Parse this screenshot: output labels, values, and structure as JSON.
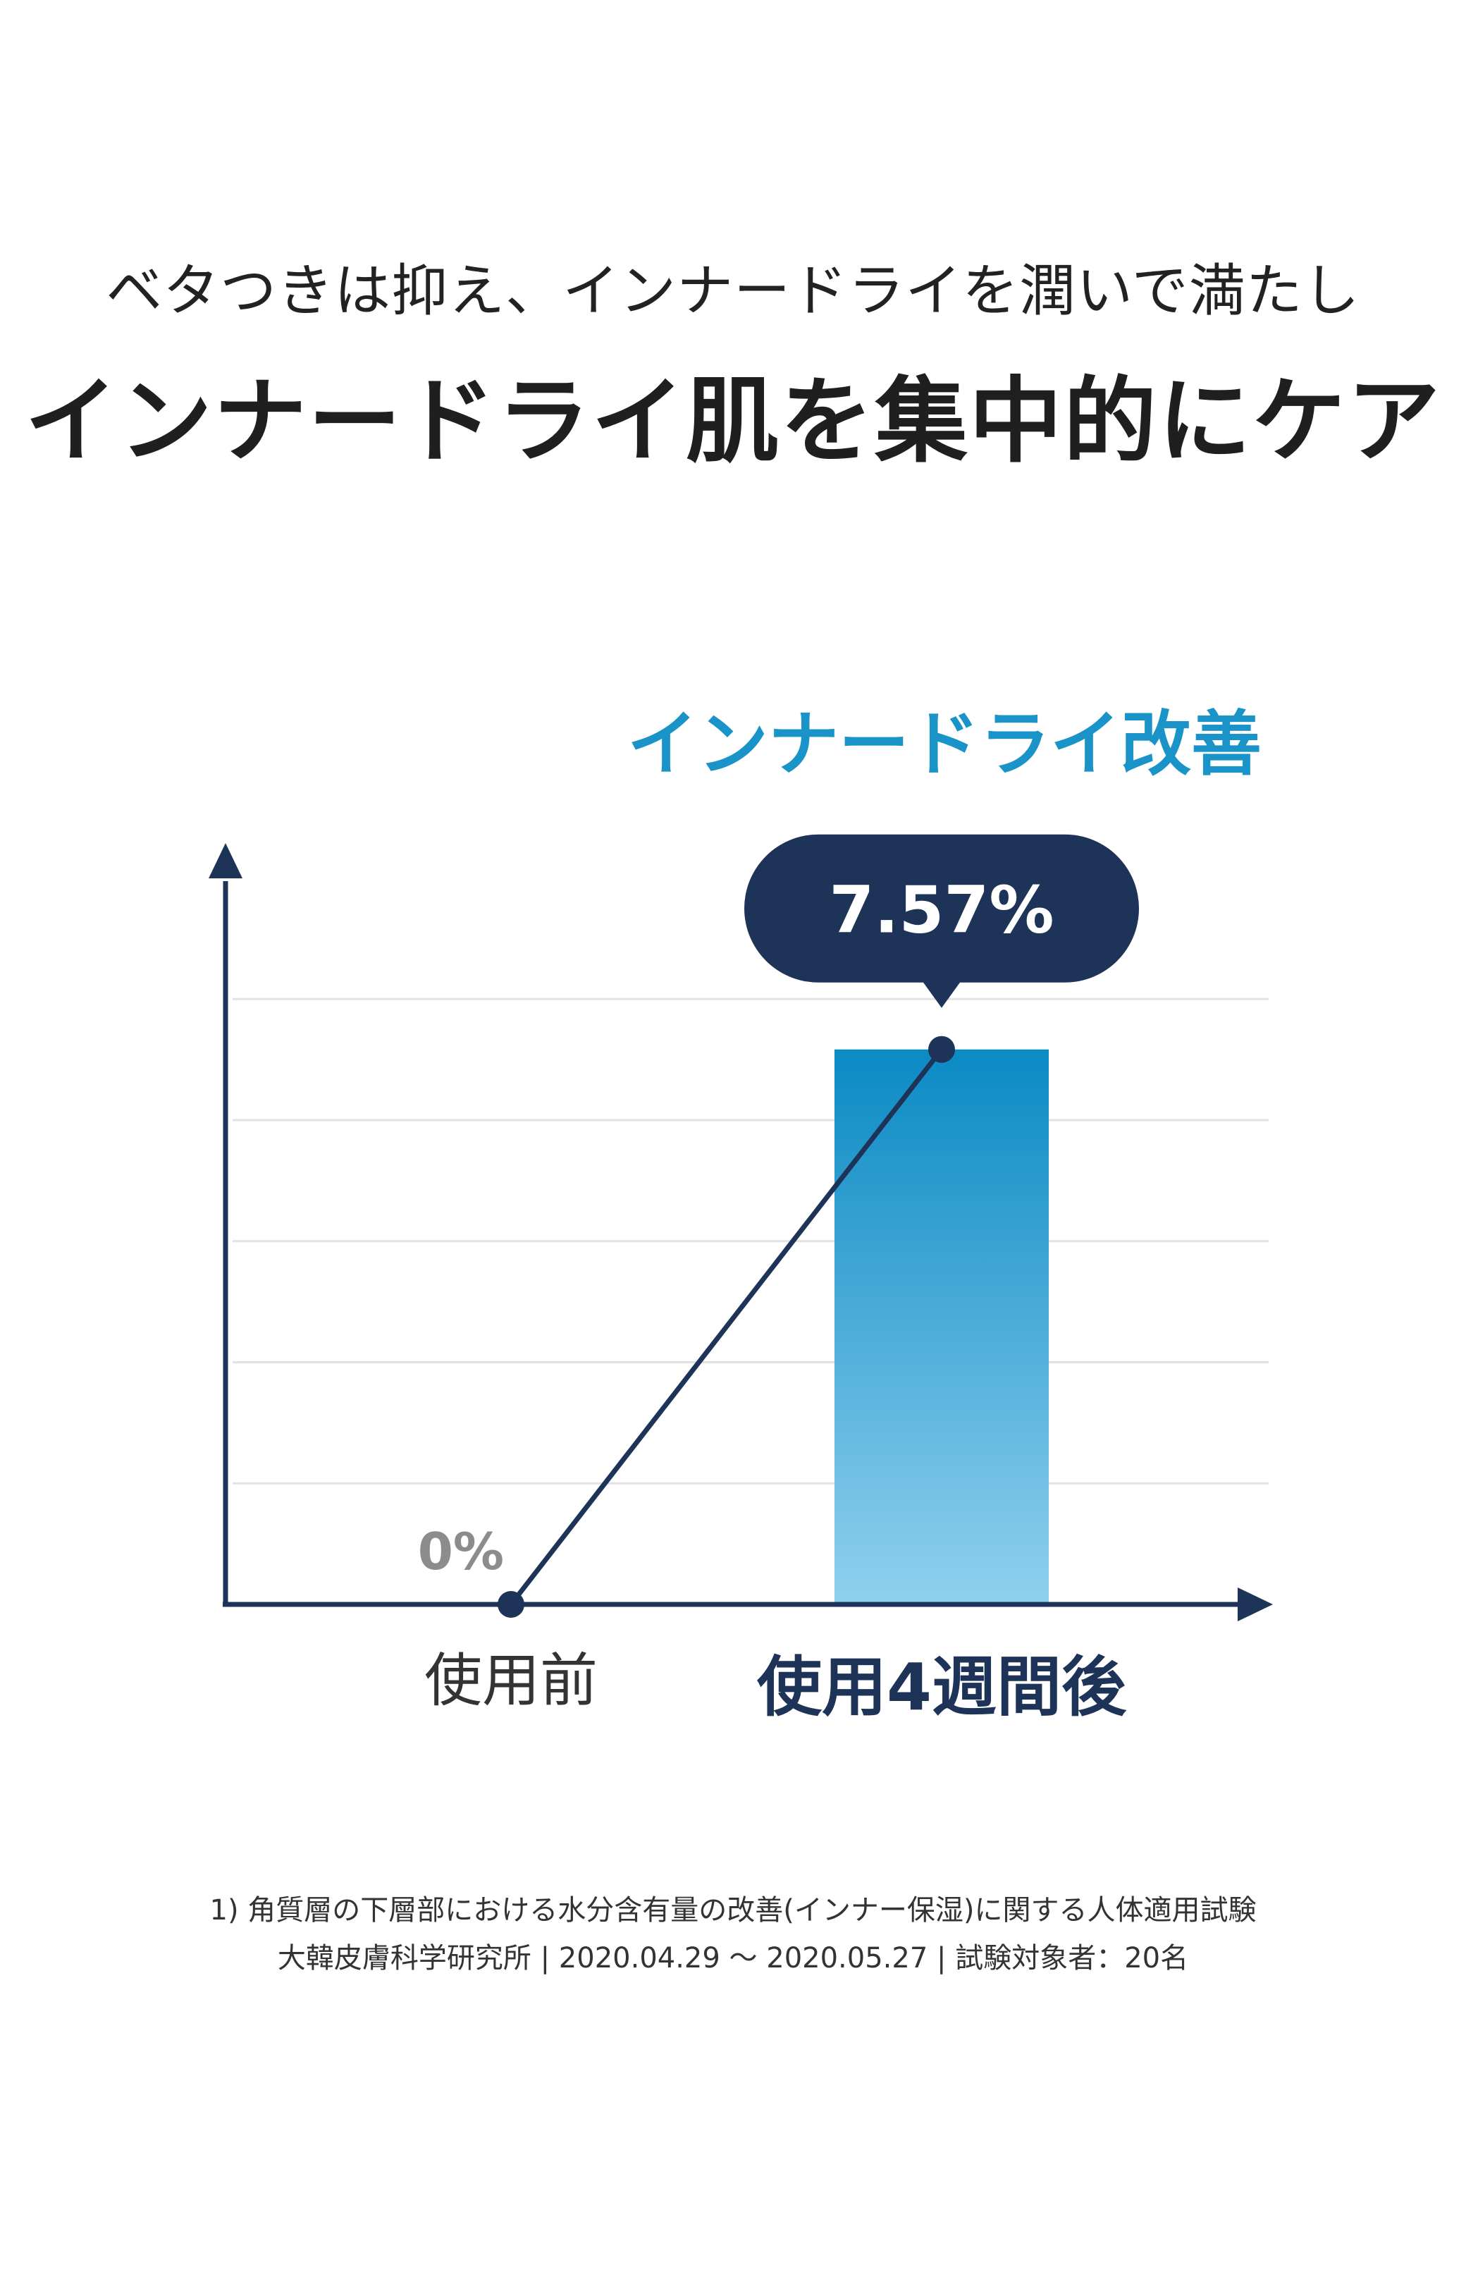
{
  "header": {
    "subtitle": "ベタつきは抑え、インナードライを潤いで満たし",
    "title": "インナードライ肌を集中的にケア"
  },
  "chart_data": {
    "type": "bar",
    "title": "インナードライ改善",
    "categories": [
      "使用前",
      "使用4週間後"
    ],
    "values": [
      0,
      7.57
    ],
    "value_labels": [
      "0%",
      "7.57%"
    ],
    "ylim": [
      0,
      9
    ],
    "grid": true,
    "colors": {
      "axis": "#1e3358",
      "bar_top": "#0b8ac4",
      "bar_bottom": "#8fd0ee",
      "title": "#1a93c8",
      "callout": "#1e3358",
      "grid": "#e2e2e2",
      "zero_label": "#8c8c8c"
    }
  },
  "footnotes": {
    "line1": "1) 角質層の下層部における水分含有量の改善(インナー保湿)に関する人体適用試験",
    "line2": "大韓皮膚科学研究所 | 2020.04.29 ～ 2020.05.27 | 試験対象者：20名"
  }
}
